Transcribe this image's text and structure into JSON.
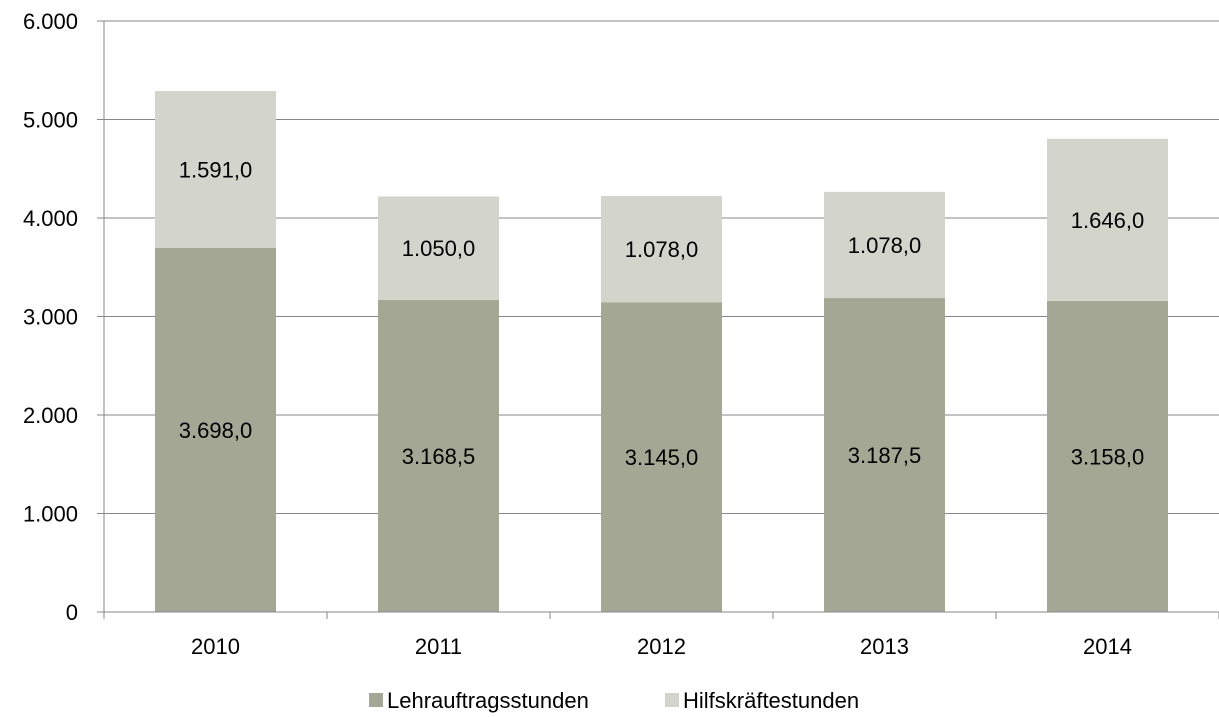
{
  "chart_data": {
    "type": "bar",
    "stacked": true,
    "categories": [
      "2010",
      "2011",
      "2012",
      "2013",
      "2014"
    ],
    "series": [
      {
        "name": "Lehrauftragsstunden",
        "color": "#a5a795",
        "values": [
          3698.0,
          3168.5,
          3145.0,
          3187.5,
          3158.0
        ],
        "labels": [
          "3.698,0",
          "3.168,5",
          "3.145,0",
          "3.187,5",
          "3.158,0"
        ]
      },
      {
        "name": "Hilfskräftestunden",
        "color": "#d3d4cb",
        "values": [
          1591.0,
          1050.0,
          1078.0,
          1078.0,
          1646.0
        ],
        "labels": [
          "1.591,0",
          "1.050,0",
          "1.078,0",
          "1.078,0",
          "1.646,0"
        ]
      }
    ],
    "ylim": [
      0,
      6000
    ],
    "yticks": [
      0,
      1000,
      2000,
      3000,
      4000,
      5000,
      6000
    ],
    "ytick_labels": [
      "0",
      "1.000",
      "2.000",
      "3.000",
      "4.000",
      "5.000",
      "6.000"
    ],
    "title": "",
    "xlabel": "",
    "ylabel": "",
    "grid": true,
    "legend_position": "bottom"
  }
}
